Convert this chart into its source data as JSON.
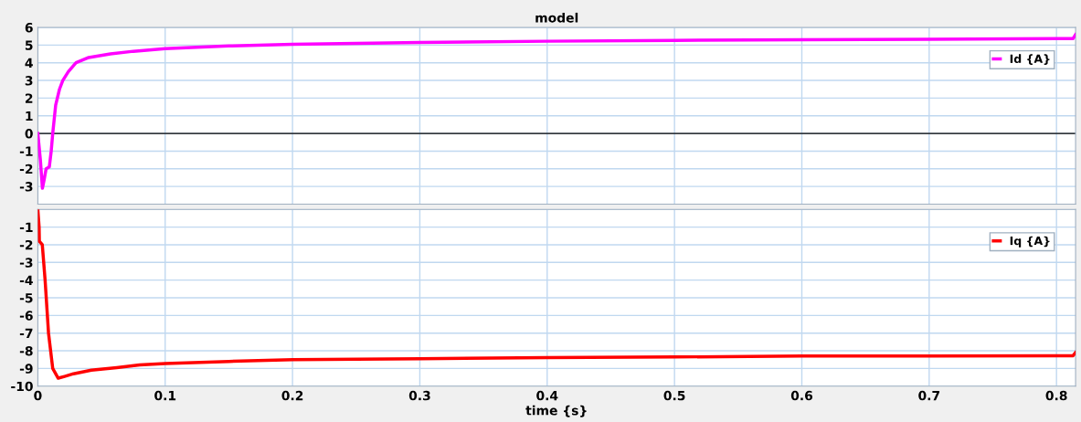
{
  "chart_data": [
    {
      "type": "line",
      "title": "model",
      "xlim": [
        0,
        0.815
      ],
      "xticks": [
        0,
        0.1,
        0.2,
        0.3,
        0.4,
        0.5,
        0.6,
        0.7,
        0.8
      ],
      "ylim": [
        -4,
        6
      ],
      "yticks": [
        -3,
        -2,
        -1,
        0,
        1,
        2,
        3,
        4,
        5,
        6
      ],
      "tick_labels": "y",
      "grid": true,
      "legend": "top right",
      "ref_lines": [
        {
          "axis": "y",
          "value": 0,
          "color": "#000000"
        }
      ],
      "series": [
        {
          "name": "Id {A}",
          "color": "#ff00ff",
          "x": [
            0,
            0.002,
            0.0036,
            0.005,
            0.0065,
            0.009,
            0.0105,
            0.0117,
            0.014,
            0.017,
            0.0196,
            0.024,
            0.03,
            0.04,
            0.057,
            0.075,
            0.1,
            0.15,
            0.2,
            0.3,
            0.4,
            0.5,
            0.6,
            0.7,
            0.8,
            0.813,
            0.815
          ],
          "values": [
            0,
            -1.5,
            -3.1,
            -2.6,
            -2.0,
            -1.9,
            -1.0,
            0,
            1.6,
            2.5,
            3.0,
            3.5,
            4.0,
            4.3,
            4.5,
            4.65,
            4.8,
            4.95,
            5.05,
            5.15,
            5.22,
            5.27,
            5.3,
            5.33,
            5.37,
            5.37,
            5.6
          ]
        }
      ]
    },
    {
      "type": "line",
      "xlabel": "time {s}",
      "xlim": [
        0,
        0.815
      ],
      "xticks": [
        0,
        0.1,
        0.2,
        0.3,
        0.4,
        0.5,
        0.6,
        0.7,
        0.8
      ],
      "ylim": [
        -10,
        0
      ],
      "yticks": [
        -10,
        -9,
        -8,
        -7,
        -6,
        -5,
        -4,
        -3,
        -2,
        -1,
        {
          "value": 0,
          "label": null
        }
      ],
      "grid": true,
      "legend": "top right",
      "series": [
        {
          "name": "Iq {A}",
          "color": "#ff0000",
          "x": [
            0,
            0.001,
            0.0012,
            0.0035,
            0.0057,
            0.0084,
            0.0117,
            0.016,
            0.021,
            0.028,
            0.042,
            0.062,
            0.08,
            0.1,
            0.15,
            0.2,
            0.3,
            0.4,
            0.5,
            0.6,
            0.7,
            0.8,
            0.813,
            0.815
          ],
          "values": [
            0,
            -1,
            -1.8,
            -2.0,
            -4.0,
            -7.0,
            -9.0,
            -9.55,
            -9.45,
            -9.3,
            -9.1,
            -8.95,
            -8.8,
            -8.72,
            -8.6,
            -8.5,
            -8.45,
            -8.38,
            -8.35,
            -8.3,
            -8.3,
            -8.28,
            -8.28,
            -8.1
          ]
        }
      ]
    }
  ]
}
